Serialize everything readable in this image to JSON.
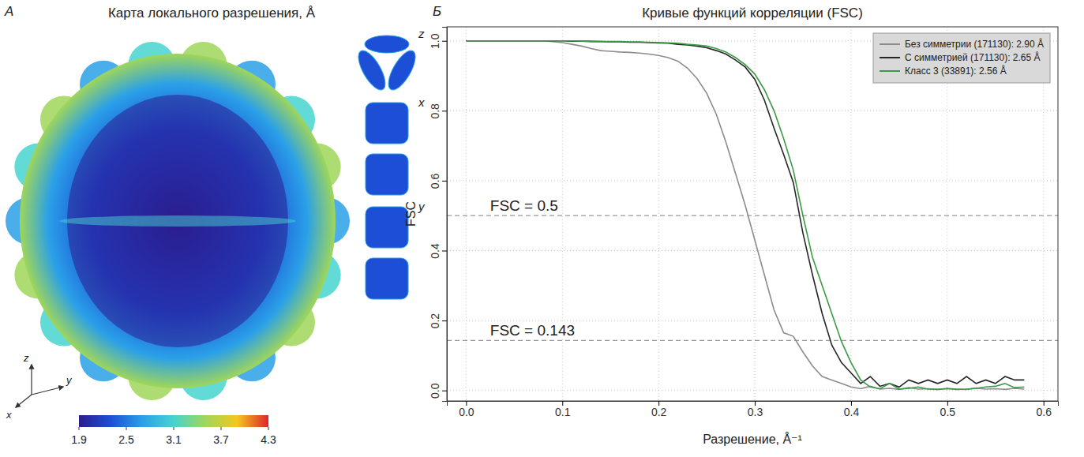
{
  "chart_data": [
    {
      "label": "А",
      "type": "density_map",
      "title": "Карта локального разрешения, Å",
      "views": [
        "z",
        "x",
        "y"
      ],
      "axes": [
        "z",
        "y",
        "x"
      ],
      "colorscale": [
        "#2b1d8f",
        "#1c4fd6",
        "#2aa0e8",
        "#47d3cf",
        "#9fd65a",
        "#f2c81f",
        "#e0242a"
      ],
      "colorbar": {
        "range": [
          1.9,
          4.3
        ],
        "ticks": [
          1.9,
          2.5,
          3.1,
          3.7,
          4.3
        ]
      }
    },
    {
      "label": "Б",
      "type": "line",
      "title": "Кривые функций корреляции (FSC)",
      "xlabel": "Разрешение, Å⁻¹",
      "ylabel": "FSC",
      "xlim": [
        -0.02,
        0.615
      ],
      "ylim": [
        -0.03,
        1.04
      ],
      "xticks": [
        {
          "value": 0,
          "label": "0.0"
        },
        0.1,
        0.2,
        0.3,
        0.4,
        0.5,
        0.6
      ],
      "yticks": [
        {
          "value": 0,
          "label": "0.0"
        },
        0.2,
        0.4,
        0.6,
        0.8,
        {
          "value": 1,
          "label": "1.0"
        }
      ],
      "grid": true,
      "legend": "upper right",
      "hlines": [
        {
          "value": 0.5,
          "label": "FSC = 0.5"
        },
        {
          "value": 0.143,
          "label": "FSC = 0.143"
        }
      ],
      "x": [
        0,
        0.01,
        0.02,
        0.03,
        0.04,
        0.05,
        0.06,
        0.07,
        0.08,
        0.09,
        0.1,
        0.11,
        0.12,
        0.13,
        0.14,
        0.15,
        0.16,
        0.17,
        0.18,
        0.19,
        0.2,
        0.21,
        0.22,
        0.23,
        0.24,
        0.25,
        0.26,
        0.27,
        0.28,
        0.29,
        0.3,
        0.31,
        0.32,
        0.33,
        0.34,
        0.35,
        0.36,
        0.37,
        0.38,
        0.39,
        0.4,
        0.41,
        0.42,
        0.43,
        0.44,
        0.45,
        0.46,
        0.47,
        0.48,
        0.49,
        0.5,
        0.51,
        0.52,
        0.53,
        0.54,
        0.55,
        0.56,
        0.57,
        0.58
      ],
      "series": [
        {
          "name": "Без симметрии (171130): 2.90 Å",
          "color": "#8c8c8c",
          "values": [
            1,
            1,
            1,
            1,
            1,
            1,
            1,
            1,
            1,
            0.998,
            0.995,
            0.99,
            0.985,
            0.978,
            0.972,
            0.97,
            0.968,
            0.967,
            0.965,
            0.962,
            0.958,
            0.952,
            0.942,
            0.922,
            0.892,
            0.85,
            0.79,
            0.71,
            0.62,
            0.53,
            0.43,
            0.33,
            0.23,
            0.165,
            0.155,
            0.11,
            0.07,
            0.04,
            0.03,
            0.02,
            0.01,
            0.005,
            0.012,
            0.004,
            0.006,
            0.003,
            0.008,
            0.004,
            0.005,
            0.003,
            0.006,
            0.004,
            0.003,
            0.007,
            0.004,
            0.005,
            0.003,
            0.006,
            0.004
          ]
        },
        {
          "name": "С симметрией (171130): 2.65 Å",
          "color": "#262626",
          "values": [
            1,
            1,
            1,
            1,
            1,
            1,
            1,
            1,
            1,
            1,
            1,
            0.999,
            0.999,
            0.998,
            0.998,
            0.997,
            0.997,
            0.996,
            0.996,
            0.995,
            0.994,
            0.993,
            0.99,
            0.988,
            0.985,
            0.98,
            0.972,
            0.962,
            0.945,
            0.925,
            0.89,
            0.83,
            0.75,
            0.675,
            0.595,
            0.45,
            0.33,
            0.22,
            0.13,
            0.08,
            0.05,
            0.02,
            0.04,
            0.012,
            0.02,
            0.01,
            0.03,
            0.02,
            0.03,
            0.02,
            0.03,
            0.02,
            0.04,
            0.02,
            0.03,
            0.02,
            0.04,
            0.03,
            0.03
          ]
        },
        {
          "name": "Класс 3 (33891): 2.56 Å",
          "color": "#3b9a45",
          "values": [
            1,
            1,
            1,
            1,
            1,
            1,
            1,
            1,
            1,
            1,
            1,
            1,
            0.999,
            0.999,
            0.998,
            0.998,
            0.998,
            0.997,
            0.997,
            0.996,
            0.995,
            0.994,
            0.993,
            0.99,
            0.988,
            0.985,
            0.978,
            0.968,
            0.952,
            0.932,
            0.905,
            0.86,
            0.8,
            0.72,
            0.63,
            0.5,
            0.38,
            0.3,
            0.22,
            0.14,
            0.08,
            0.03,
            0.01,
            0.005,
            0.02,
            0.004,
            0.006,
            0.01,
            0.004,
            0.003,
            0.005,
            0.003,
            0.004,
            0.006,
            0.01,
            0.012,
            0.02,
            0.008,
            0.01
          ]
        }
      ]
    }
  ]
}
